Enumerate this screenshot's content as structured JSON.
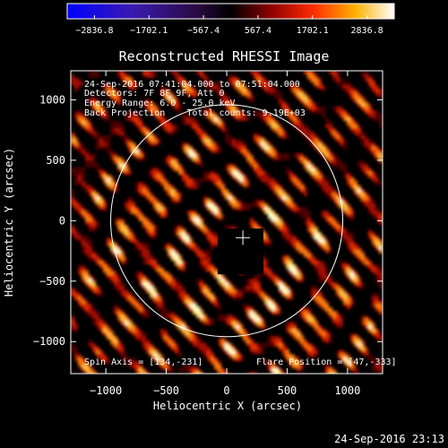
{
  "chart_data": {
    "type": "heatmap",
    "title": "Reconstructed RHESSI Image",
    "xlabel": "Heliocentric X (arcsec)",
    "ylabel": "Heliocentric Y (arcsec)",
    "xlim": [
      -1290,
      1290
    ],
    "ylim": [
      -1265,
      1240
    ],
    "x_ticks": [
      -1000,
      -500,
      0,
      500,
      1000
    ],
    "y_ticks": [
      -1000,
      -500,
      0,
      500,
      1000
    ],
    "colorbar": {
      "colormap": "hot-with-blue-negatives",
      "range": [
        -2836.8,
        2836.8
      ],
      "tick_labels": [
        "−2836.8",
        "−1702.1",
        "−567.4",
        "567.4",
        "1702.1",
        "2836.8"
      ]
    },
    "info_lines": [
      "24-Sep-2016 07:41:04.000 to 07:51:04.000",
      "Detectors: 7F 8F 9F, Att 0",
      "Energy Range: 6.0 - 25.0 keV",
      "Back Projection    Total counts: 9.19E+03"
    ],
    "spin_axis_label": "Spin Axis = [134,-231]",
    "flare_position_label": "Flare Position = [47,-333]",
    "solar_limb_radius": 960,
    "center_marker": [
      134,
      -140
    ],
    "timestamp": "24-Sep-2016 23:13"
  }
}
